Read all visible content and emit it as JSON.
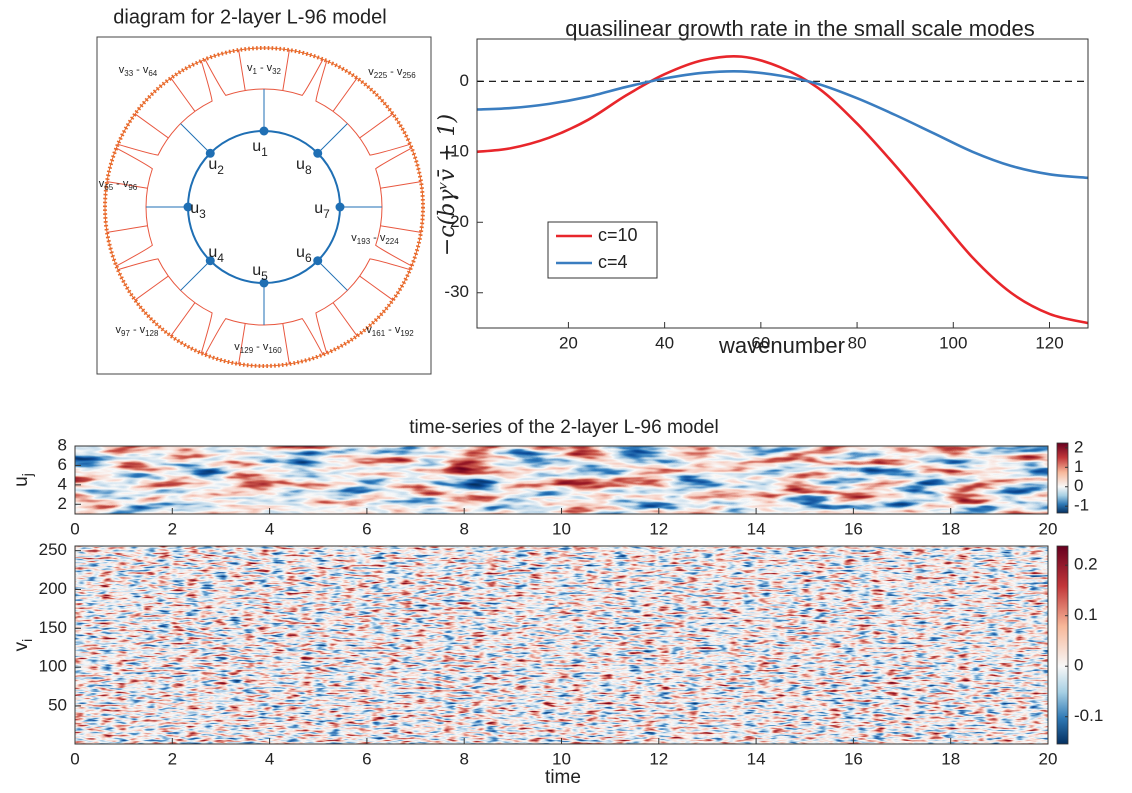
{
  "diagram": {
    "title": "diagram for 2-layer L-96 model",
    "node_symbol": "u",
    "nodes": [
      "1",
      "2",
      "3",
      "4",
      "5",
      "6",
      "7",
      "8"
    ],
    "group_symbol": "v",
    "range_dash": "-",
    "groups": [
      [
        "1",
        "32"
      ],
      [
        "33",
        "64"
      ],
      [
        "65",
        "96"
      ],
      [
        "97",
        "128"
      ],
      [
        "129",
        "160"
      ],
      [
        "161",
        "192"
      ],
      [
        "193",
        "224"
      ],
      [
        "225",
        "256"
      ]
    ]
  },
  "chart_data": [
    {
      "type": "line",
      "title": "quasilinear growth rate in the small scale modes",
      "xlabel": "wavenumber",
      "ylabel": "−c(bγᵛv̄ + 1)",
      "x": [
        1,
        8,
        16,
        24,
        32,
        40,
        48,
        56,
        64,
        72,
        80,
        88,
        96,
        104,
        112,
        120,
        128
      ],
      "series": [
        {
          "name": "c=10",
          "color": "#e8262b",
          "values": [
            -10,
            -9.5,
            -8,
            -5.5,
            -2,
            1,
            3,
            3.5,
            2,
            -1,
            -6,
            -12,
            -18.5,
            -25,
            -30,
            -33,
            -34.3
          ]
        },
        {
          "name": "c=4",
          "color": "#3a7dc0",
          "values": [
            -4,
            -3.8,
            -3.2,
            -2.2,
            -0.8,
            0.4,
            1.2,
            1.4,
            0.8,
            -0.4,
            -2.4,
            -4.8,
            -7.4,
            -10,
            -12,
            -13.2,
            -13.7
          ]
        }
      ],
      "xlim": [
        1,
        128
      ],
      "xticks": [
        20,
        40,
        60,
        80,
        100,
        120
      ],
      "ylim": [
        -35,
        6
      ],
      "yticks": [
        -30,
        -20,
        -10,
        0
      ],
      "hline": 0,
      "legend": "lower left"
    },
    {
      "type": "heatmap",
      "title": "time-series of the 2-layer L-96 model",
      "ylabel": {
        "text": "u",
        "subscript": "j"
      },
      "xlim": [
        0,
        20
      ],
      "xticks": [
        0,
        2,
        4,
        6,
        8,
        10,
        12,
        14,
        16,
        18,
        20
      ],
      "ylim": [
        1,
        8
      ],
      "yticks": [
        2,
        4,
        6,
        8
      ],
      "clim": [
        -1.35,
        2.25
      ],
      "cticks": [
        -1,
        0,
        1,
        2
      ],
      "colormap": [
        "#053061",
        "#2f79b5",
        "#a7d0e4",
        "#f7f7f7",
        "#f7b799",
        "#c2373a",
        "#67001f"
      ]
    },
    {
      "type": "heatmap",
      "xlabel": "time",
      "ylabel": {
        "text": "v",
        "subscript": "i"
      },
      "xlim": [
        0,
        20
      ],
      "xticks": [
        0,
        2,
        4,
        6,
        8,
        10,
        12,
        14,
        16,
        18,
        20
      ],
      "ylim": [
        1,
        256
      ],
      "yticks": [
        50,
        100,
        150,
        200,
        250
      ],
      "clim": [
        -0.154,
        0.238
      ],
      "cticks": [
        -0.1,
        0,
        0.1,
        0.2
      ],
      "colormap": [
        "#053061",
        "#2f79b5",
        "#a7d0e4",
        "#f7f7f7",
        "#f7b799",
        "#c2373a",
        "#67001f"
      ]
    }
  ]
}
